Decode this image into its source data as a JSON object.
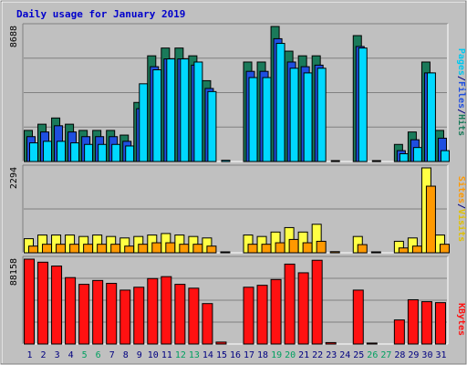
{
  "chart_data": {
    "type": "bar",
    "title": "Daily usage for January 2019",
    "categories": [
      "1",
      "2",
      "3",
      "4",
      "5",
      "6",
      "7",
      "8",
      "9",
      "10",
      "11",
      "12",
      "13",
      "14",
      "15",
      "16",
      "17",
      "18",
      "19",
      "20",
      "21",
      "22",
      "23",
      "24",
      "25",
      "26",
      "27",
      "28",
      "29",
      "30",
      "31"
    ],
    "weekend_days": [
      5,
      6,
      12,
      13,
      19,
      20,
      26,
      27
    ],
    "panels": [
      {
        "id": "hits-files-pages",
        "ymax_label": "8688",
        "ymax": 8688,
        "side_label": {
          "pages": "Pages",
          "sep1": "/",
          "files": "Files",
          "sep2": "/",
          "hits": "Hits"
        },
        "series": [
          {
            "name": "Hits",
            "color": "#1a7a5a",
            "values": [
              2000,
              2400,
              2800,
              2400,
              2000,
              2000,
              2000,
              1700,
              3800,
              6800,
              7300,
              7300,
              6800,
              5200,
              0,
              0,
              6400,
              6400,
              8688,
              7100,
              6800,
              6800,
              0,
              0,
              8100,
              0,
              0,
              1100,
              1900,
              6400,
              2000
            ]
          },
          {
            "name": "Files",
            "color": "#1f4fe0",
            "values": [
              1600,
              1900,
              2300,
              1900,
              1600,
              1600,
              1600,
              1300,
              3400,
              6100,
              6600,
              6600,
              6200,
              4700,
              0,
              0,
              5800,
              5800,
              7900,
              6400,
              6100,
              6200,
              0,
              0,
              7400,
              0,
              0,
              700,
              1400,
              5700,
              1500
            ]
          },
          {
            "name": "Pages",
            "color": "#00d8ff",
            "values": [
              1200,
              1300,
              1300,
              1200,
              1100,
              1100,
              1100,
              1000,
              5000,
              5900,
              6600,
              6600,
              6400,
              4500,
              80,
              0,
              5400,
              5400,
              7600,
              6000,
              5700,
              6000,
              50,
              0,
              7300,
              50,
              0,
              500,
              900,
              5700,
              700
            ]
          }
        ]
      },
      {
        "id": "visits-sites",
        "ymax_label": "2294",
        "ymax": 2294,
        "side_label": {
          "sites": "Sites",
          "sep": "/",
          "visits": "Visits"
        },
        "series": [
          {
            "name": "Visits",
            "color": "#ffff44",
            "values": [
              380,
              480,
              480,
              480,
              440,
              480,
              440,
              400,
              440,
              480,
              520,
              480,
              440,
              400,
              0,
              0,
              480,
              440,
              560,
              680,
              560,
              770,
              0,
              0,
              440,
              0,
              0,
              310,
              400,
              2294,
              480
            ]
          },
          {
            "name": "Sites",
            "color": "#ff9900",
            "values": [
              180,
              230,
              230,
              230,
              230,
              230,
              230,
              180,
              230,
              270,
              270,
              230,
              230,
              180,
              20,
              0,
              230,
              230,
              270,
              360,
              270,
              310,
              30,
              0,
              220,
              20,
              0,
              130,
              180,
              1800,
              230
            ]
          }
        ]
      },
      {
        "id": "kbytes",
        "ymax_label": "88158",
        "ymax": 88158,
        "side_label": {
          "kbytes": "KBytes"
        },
        "series": [
          {
            "name": "KBytes",
            "color": "#ff1111",
            "values": [
              88158,
              85000,
              81000,
              69000,
              62000,
              66000,
              63000,
              56000,
              59000,
              68000,
              70000,
              62000,
              58000,
              42000,
              2000,
              0,
              59000,
              61000,
              67000,
              83000,
              74000,
              87000,
              1500,
              0,
              56000,
              1000,
              0,
              25000,
              46000,
              44000,
              43000
            ]
          }
        ]
      }
    ],
    "colors": {
      "background": "#c0c0c0",
      "frame": "#ffffff",
      "title": "#0000cc",
      "day_label": "#000080",
      "weekend_label": "#00a060",
      "grid": "#808080"
    }
  }
}
